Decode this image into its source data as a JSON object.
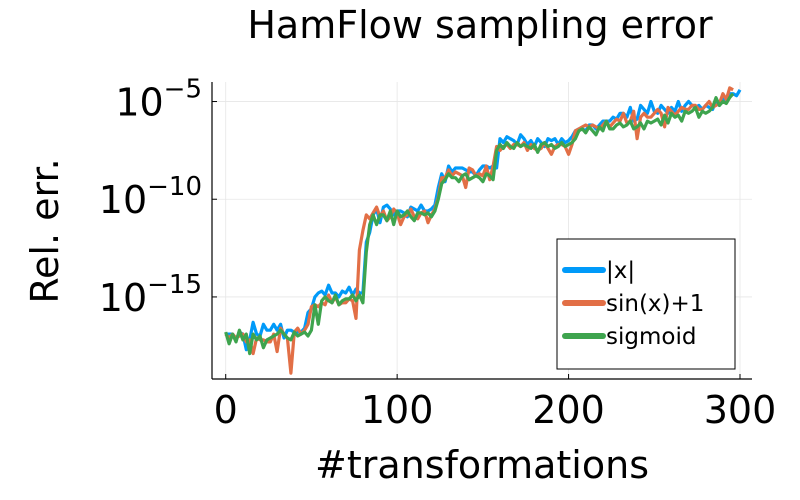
{
  "chart_data": {
    "type": "line",
    "title": "HamFlow sampling error",
    "xlabel": "#transformations",
    "ylabel": "Rel. err.",
    "xlim": [
      -8,
      307
    ],
    "ylim_log10": [
      -19.2,
      -4.0
    ],
    "y_scale": "log",
    "xticks": [
      0,
      100,
      200,
      300
    ],
    "xtick_labels": [
      "0",
      "100",
      "200",
      "300"
    ],
    "yticks_log10": [
      -15,
      -10,
      -5
    ],
    "ytick_labels": [
      {
        "base": "10",
        "exp": "−15"
      },
      {
        "base": "10",
        "exp": "−10"
      },
      {
        "base": "10",
        "exp": "−5"
      }
    ],
    "grid": true,
    "legend_position": "bottom-right",
    "series": [
      {
        "name": "|x|",
        "color": "#009af9",
        "x_step": 2,
        "log10_values": [
          -16.9,
          -16.9,
          -16.9,
          -17.2,
          -16.8,
          -16.9,
          -17.7,
          -17.2,
          -16.3,
          -16.9,
          -17.0,
          -16.4,
          -16.7,
          -16.7,
          -16.4,
          -16.7,
          -16.4,
          -17.1,
          -16.7,
          -16.7,
          -16.8,
          -16.8,
          -16.8,
          -16.6,
          -15.8,
          -15.6,
          -15.0,
          -14.8,
          -14.7,
          -14.9,
          -14.4,
          -14.8,
          -14.8,
          -15.0,
          -14.7,
          -14.8,
          -14.5,
          -14.9,
          -14.6,
          -14.8,
          -14.8,
          -12.2,
          -11.7,
          -10.8,
          -10.5,
          -11.2,
          -10.4,
          -10.3,
          -10.5,
          -10.8,
          -10.6,
          -10.6,
          -10.7,
          -10.9,
          -10.4,
          -10.5,
          -10.6,
          -10.3,
          -10.6,
          -10.6,
          -10.5,
          -10.3,
          -9.4,
          -8.7,
          -9.1,
          -8.3,
          -8.6,
          -8.4,
          -8.4,
          -8.4,
          -8.5,
          -8.6,
          -8.6,
          -8.8,
          -8.5,
          -8.3,
          -8.3,
          -8.4,
          -8.3,
          -8.4,
          -6.9,
          -7.1,
          -6.8,
          -6.9,
          -7.0,
          -7.2,
          -6.7,
          -6.9,
          -7.2,
          -7.0,
          -7.3,
          -6.9,
          -7.1,
          -7.3,
          -6.9,
          -7.0,
          -6.9,
          -7.2,
          -6.9,
          -7.1,
          -7.0,
          -6.8,
          -6.5,
          -6.4,
          -6.4,
          -6.5,
          -6.2,
          -6.2,
          -6.4,
          -6.2,
          -6.0,
          -6.0,
          -6.0,
          -5.8,
          -5.9,
          -5.6,
          -5.6,
          -5.8,
          -5.3,
          -6.0,
          -5.9,
          -5.2,
          -5.4,
          -5.6,
          -5.0,
          -5.5,
          -5.6,
          -5.2,
          -5.4,
          -5.6,
          -5.3,
          -5.5,
          -5.0,
          -5.5,
          -5.2,
          -5.0,
          -5.2,
          -5.3,
          -5.2,
          -5.4,
          -5.2,
          -5.3,
          -5.4,
          -5.0,
          -5.2,
          -4.8,
          -5.0,
          -4.6,
          -4.6,
          -4.7,
          -4.4
        ]
      },
      {
        "name": "sin(x)+1",
        "color": "#e26f46",
        "x_step": 2,
        "log10_values": [
          -16.9,
          -17.1,
          -16.9,
          -17.1,
          -17.0,
          -16.9,
          -17.3,
          -17.2,
          -17.9,
          -17.1,
          -17.2,
          -17.2,
          -17.3,
          -17.3,
          -16.9,
          -17.8,
          -16.6,
          -16.9,
          -17.1,
          -18.9,
          -16.8,
          -16.6,
          -16.9,
          -16.7,
          -16.4,
          -15.5,
          -15.4,
          -15.5,
          -15.3,
          -15.4,
          -14.9,
          -15.3,
          -15.0,
          -15.4,
          -15.3,
          -15.3,
          -15.1,
          -15.2,
          -16.1,
          -12.6,
          -11.6,
          -10.8,
          -11.0,
          -10.7,
          -10.4,
          -10.9,
          -10.6,
          -11.1,
          -10.9,
          -10.5,
          -10.7,
          -11.3,
          -10.9,
          -10.8,
          -10.5,
          -10.9,
          -11.0,
          -10.7,
          -10.6,
          -11.2,
          -10.8,
          -10.5,
          -9.9,
          -8.9,
          -8.9,
          -8.5,
          -8.8,
          -8.6,
          -8.7,
          -8.8,
          -9.4,
          -8.4,
          -8.5,
          -8.8,
          -8.7,
          -8.8,
          -8.3,
          -9.0,
          -8.3,
          -7.3,
          -7.5,
          -7.3,
          -7.2,
          -7.4,
          -7.2,
          -7.2,
          -7.3,
          -7.1,
          -7.5,
          -7.2,
          -7.4,
          -7.5,
          -7.4,
          -7.1,
          -7.4,
          -7.7,
          -7.3,
          -7.2,
          -7.2,
          -7.3,
          -7.7,
          -7.2,
          -6.5,
          -6.4,
          -6.3,
          -6.2,
          -6.3,
          -6.2,
          -6.3,
          -6.4,
          -6.2,
          -6.0,
          -6.3,
          -6.1,
          -5.9,
          -6.0,
          -5.6,
          -6.1,
          -6.0,
          -5.5,
          -6.9,
          -5.8,
          -5.6,
          -5.8,
          -5.8,
          -5.6,
          -5.4,
          -5.6,
          -6.3,
          -5.3,
          -5.5,
          -5.7,
          -5.5,
          -5.3,
          -5.4,
          -5.4,
          -5.2,
          -5.2,
          -5.4,
          -5.4,
          -5.2,
          -5.0,
          -5.3,
          -5.2,
          -5.1,
          -4.6,
          -4.9,
          -4.3,
          -4.4
        ]
      },
      {
        "name": "sigmoid",
        "color": "#3ea44e",
        "x_step": 2,
        "log10_values": [
          -16.8,
          -17.4,
          -16.9,
          -17.3,
          -16.7,
          -17.2,
          -16.9,
          -17.9,
          -16.9,
          -17.2,
          -17.0,
          -17.6,
          -17.2,
          -17.1,
          -17.0,
          -16.9,
          -16.7,
          -16.9,
          -17.1,
          -17.2,
          -16.8,
          -17.0,
          -16.9,
          -16.8,
          -17.0,
          -16.7,
          -15.4,
          -16.4,
          -15.2,
          -15.0,
          -15.2,
          -15.3,
          -14.9,
          -15.4,
          -15.2,
          -15.1,
          -15.1,
          -14.9,
          -15.2,
          -14.9,
          -15.3,
          -12.7,
          -11.3,
          -10.8,
          -11.3,
          -10.8,
          -10.8,
          -11.1,
          -10.6,
          -11.3,
          -10.6,
          -10.9,
          -10.8,
          -10.6,
          -10.9,
          -11.1,
          -10.7,
          -10.7,
          -10.8,
          -10.7,
          -10.9,
          -10.6,
          -10.0,
          -9.2,
          -9.0,
          -8.7,
          -8.9,
          -8.9,
          -9.1,
          -8.8,
          -8.7,
          -9.0,
          -8.9,
          -8.8,
          -8.9,
          -9.1,
          -8.7,
          -8.8,
          -9.0,
          -7.5,
          -7.2,
          -7.4,
          -7.1,
          -7.3,
          -7.4,
          -7.1,
          -7.3,
          -7.2,
          -7.3,
          -7.4,
          -7.2,
          -7.6,
          -7.2,
          -7.1,
          -7.3,
          -7.2,
          -7.4,
          -7.3,
          -7.1,
          -7.3,
          -7.2,
          -7.1,
          -6.9,
          -6.5,
          -6.4,
          -6.6,
          -6.3,
          -6.5,
          -6.7,
          -6.3,
          -6.5,
          -6.0,
          -6.4,
          -6.4,
          -6.2,
          -6.1,
          -6.3,
          -6.2,
          -6.0,
          -6.4,
          -6.3,
          -6.1,
          -6.4,
          -6.0,
          -6.1,
          -6.0,
          -5.9,
          -6.2,
          -5.7,
          -6.1,
          -5.6,
          -5.8,
          -5.7,
          -6.0,
          -5.5,
          -5.6,
          -5.5,
          -5.3,
          -5.8,
          -5.5,
          -5.6,
          -5.5,
          -5.3,
          -4.8,
          -5.2,
          -5.0,
          -5.1,
          -4.8,
          -4.6
        ]
      }
    ]
  }
}
